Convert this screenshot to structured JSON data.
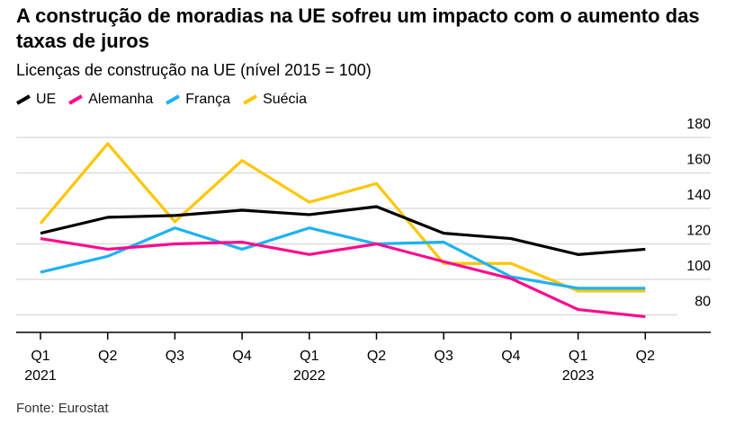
{
  "title": "A construção de moradias na UE sofreu um impacto com o aumento das taxas de juros",
  "subtitle": "Licenças de construção na UE (nível 2015 = 100)",
  "source": "Fonte: Eurostat",
  "chart_data": {
    "type": "line",
    "categories": [
      "Q1 2021",
      "Q2 2021",
      "Q3 2021",
      "Q4 2021",
      "Q1 2022",
      "Q2 2022",
      "Q3 2022",
      "Q4 2022",
      "Q1 2023",
      "Q2 2023"
    ],
    "tick_labels": [
      [
        "Q1",
        "2021"
      ],
      [
        "Q2",
        ""
      ],
      [
        "Q3",
        ""
      ],
      [
        "Q4",
        ""
      ],
      [
        "Q1",
        "2022"
      ],
      [
        "Q2",
        ""
      ],
      [
        "Q3",
        ""
      ],
      [
        "Q4",
        ""
      ],
      [
        "Q1",
        "2023"
      ],
      [
        "Q2",
        ""
      ]
    ],
    "ylim": [
      70,
      185
    ],
    "yticks": [
      180,
      160,
      140,
      120,
      100,
      80
    ],
    "grid": true,
    "legend": "top-left",
    "series": [
      {
        "name": "UE",
        "color": "#000000",
        "values": [
          126,
          135,
          136,
          139,
          136.5,
          141,
          126,
          123,
          114,
          117
        ]
      },
      {
        "name": "Alemanha",
        "color": "#ff0a8c",
        "values": [
          123,
          117,
          120,
          121,
          114,
          120,
          110,
          100.5,
          83,
          79
        ]
      },
      {
        "name": "França",
        "color": "#1db2f5",
        "values": [
          104,
          113,
          129,
          117,
          129,
          120,
          121,
          101.5,
          95,
          95
        ]
      },
      {
        "name": "Suécia",
        "color": "#ffc600",
        "values": [
          131.5,
          176.5,
          132.5,
          167,
          143.5,
          154,
          109,
          109,
          93.5,
          93.5
        ]
      }
    ]
  }
}
